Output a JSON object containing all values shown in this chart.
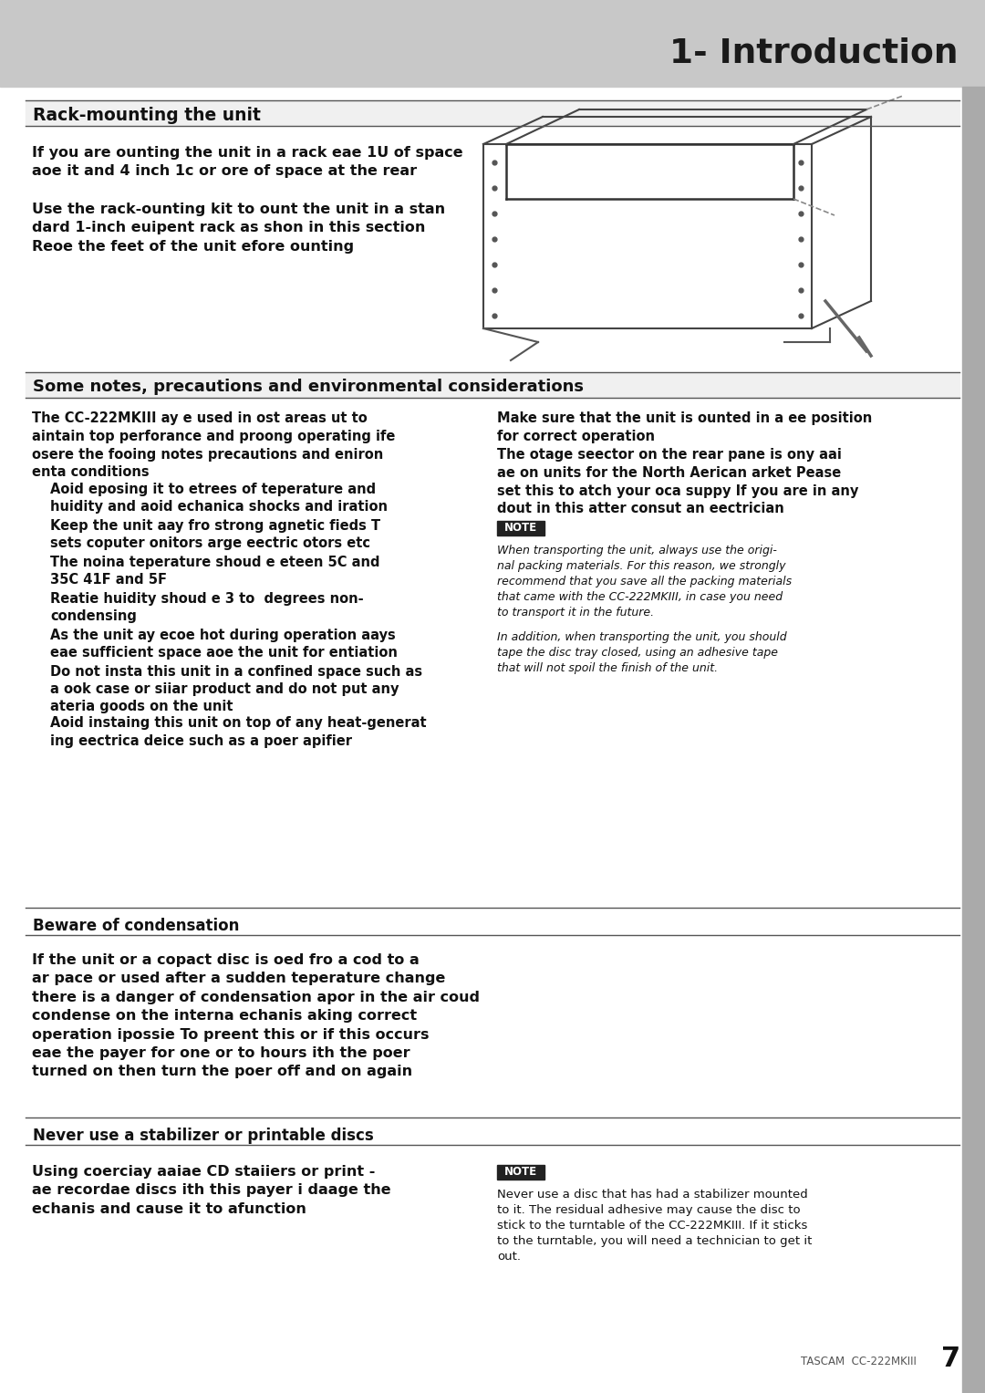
{
  "page_bg": "#ffffff",
  "header_bg": "#c8c8c8",
  "header_text": "1- Introduction",
  "header_text_color": "#1a1a1a",
  "sidebar_color": "#9e9e9e",
  "section1_title": "Rack-mounting the unit",
  "section1_body1": "If you are ounting the unit in a rack eae 1U of space\naoe it and 4 inch 1c or ore of space at the rear",
  "section1_body2": "Use the rack-ounting kit to ount the unit in a stan\ndard 1-inch euipent rack as shon in this section\nReoe the feet of the unit efore ounting",
  "section2_title": "Some notes, precautions and environmental considerations",
  "section2_intro_left": "The CC-222MKIII ay e used in ost areas ut to\naintain top perforance and proong operating ife\nosere the fooing notes precautions and eniron\nenta conditions",
  "section2_bullets": [
    "Aoid eposing it to etrees of teperature and\nhuidity and aoid echanica shocks and iration",
    "Keep the unit aay fro strong agnetic fieds T\nsets coputer onitors arge eectric otors etc",
    "The noina teperature shoud e eteen 5C and\n35C 41F and 5F",
    "Reatie huidity shoud e 3 to  degrees non-\ncondensing",
    "As the unit ay ecoe hot during operation aays\neae sufficient space aoe the unit for entiation",
    "Do not insta this unit in a confined space such as\na ook case or siiar product and do not put any\nateria goods on the unit",
    "Aoid instaing this unit on top of any heat-generat\ning eectrica deice such as a poer apifier"
  ],
  "section2_right_title1": "Make sure that the unit is ounted in a ee position\nfor correct operation",
  "section2_right_body1": "The otage seector on the rear pane is ony aai\nae on units for the North Aerican arket Pease\nset this to atch your oca suppy If you are in any\ndout in this atter consut an eectrician",
  "section2_note_title": "NOTE",
  "section2_note_body": "When transporting the unit, always use the origi-\nnal packing materials. For this reason, we strongly\nrecommend that you save all the packing materials\nthat came with the CC-222MKIII, in case you need\nto transport it in the future.",
  "section2_note_body2": "In addition, when transporting the unit, you should\ntape the disc tray closed, using an adhesive tape\nthat will not spoil the finish of the unit.",
  "section3_title": "Beware of condensation",
  "section3_body": "If the unit or a copact disc is oed fro a cod to a\nar pace or used after a sudden teperature change\nthere is a danger of condensation apor in the air coud\ncondense on the interna echanis aking correct\noperation ipossie To preent this or if this occurs\neae the payer for one or to hours ith the poer\nturned on then turn the poer off and on again",
  "section4_title": "Never use a stabilizer or printable discs",
  "section4_body_left": "Using coerciay aaiae CD staiiers or print -\nae recordae discs ith this payer i daage the\nechanis and cause it to afunction",
  "section4_note_title": "NOTE",
  "section4_note_body": "Never use a disc that has had a stabilizer mounted\nto it. The residual adhesive may cause the disc to\nstick to the turntable of the CC-222MKIII. If it sticks\nto the turntable, you will need a technician to get it\nout.",
  "footer_text": "TASCAM  CC-222MKIII",
  "footer_page": "7"
}
